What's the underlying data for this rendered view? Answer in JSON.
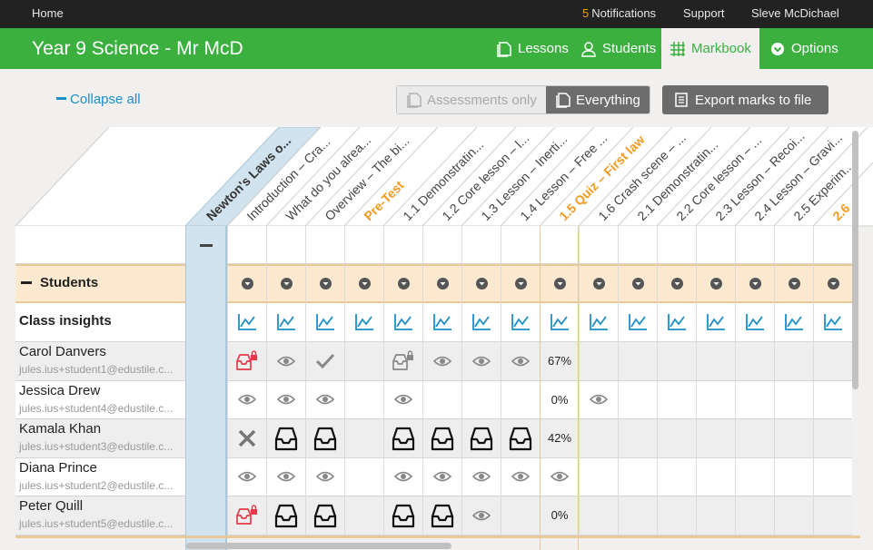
{
  "topbar": {
    "home": "Home",
    "notifications_count": "5",
    "notifications_label": "Notifications",
    "support": "Support",
    "user": "Sleve McDichael"
  },
  "header": {
    "title": "Year 9 Science - Mr McD",
    "tabs": [
      {
        "label": "Lessons",
        "icon": "lessons-icon",
        "active": false
      },
      {
        "label": "Students",
        "icon": "students-icon",
        "active": false
      },
      {
        "label": "Markbook",
        "icon": "grid-icon",
        "active": true
      },
      {
        "label": "Options",
        "icon": "chevron-circle-icon",
        "active": false
      }
    ],
    "color": "#3bb03e"
  },
  "toolbar": {
    "collapse_all": "Collapse all",
    "assessments_only": "Assessments only",
    "everything": "Everything",
    "export": "Export marks to file"
  },
  "columns": [
    {
      "label": "Newton's Laws o...",
      "kind": "group"
    },
    {
      "label": "Introduction – Cra...",
      "kind": "normal"
    },
    {
      "label": "What do you alrea...",
      "kind": "normal"
    },
    {
      "label": "Overview – The bi...",
      "kind": "normal"
    },
    {
      "label": "Pre-Test",
      "kind": "test"
    },
    {
      "label": "1.1 Demonstratin...",
      "kind": "normal"
    },
    {
      "label": "1.2 Core lesson – l...",
      "kind": "normal"
    },
    {
      "label": "1.3 Lesson – Inerti...",
      "kind": "normal"
    },
    {
      "label": "1.4 Lesson – Free ...",
      "kind": "normal"
    },
    {
      "label": "1.5 Quiz – First law",
      "kind": "test"
    },
    {
      "label": "1.6 Crash scene – ...",
      "kind": "normal"
    },
    {
      "label": "2.1 Demonstratin...",
      "kind": "normal"
    },
    {
      "label": "2.2 Core lesson – ...",
      "kind": "normal"
    },
    {
      "label": "2.3 Lesson – Recoi...",
      "kind": "normal"
    },
    {
      "label": "2.4 Lesson – Gravi...",
      "kind": "normal"
    },
    {
      "label": "2.5 Experim...",
      "kind": "normal"
    },
    {
      "label": "2.6",
      "kind": "test"
    }
  ],
  "rows": {
    "students_label": "Students",
    "class_insights": "Class insights"
  },
  "students": [
    {
      "name": "Carol Danvers",
      "email": "jules.ius+student1@edustile.c...",
      "cells": [
        "inbox-lock",
        "eye",
        "check",
        "",
        "inbox-lock-grey",
        "eye",
        "eye",
        "eye",
        "67%",
        "",
        "",
        "",
        "",
        "",
        "",
        ""
      ]
    },
    {
      "name": "Jessica Drew",
      "email": "jules.ius+student4@edustile.c...",
      "cells": [
        "eye",
        "eye",
        "eye",
        "",
        "eye",
        "",
        "",
        "",
        "0%",
        "eye",
        "",
        "",
        "",
        "",
        "",
        ""
      ]
    },
    {
      "name": "Kamala Khan",
      "email": "jules.ius+student3@edustile.c...",
      "cells": [
        "cross",
        "inbox",
        "inbox",
        "",
        "inbox",
        "inbox",
        "inbox",
        "inbox",
        "42%",
        "",
        "",
        "",
        "",
        "",
        "",
        ""
      ]
    },
    {
      "name": "Diana Prince",
      "email": "jules.ius+student2@edustile.c...",
      "cells": [
        "eye",
        "eye",
        "eye",
        "",
        "eye",
        "eye",
        "eye",
        "eye",
        "eye",
        "",
        "",
        "",
        "",
        "",
        "",
        ""
      ]
    },
    {
      "name": "Peter Quill",
      "email": "jules.ius+student5@edustile.c...",
      "cells": [
        "inbox-lock",
        "inbox",
        "inbox",
        "",
        "inbox",
        "inbox",
        "eye",
        "",
        "0%",
        "",
        "",
        "",
        "",
        "",
        "",
        ""
      ]
    }
  ],
  "colors": {
    "accent_blue": "#1c8fc6",
    "test_orange": "#f29a1e",
    "lock_red": "#e8394a"
  }
}
